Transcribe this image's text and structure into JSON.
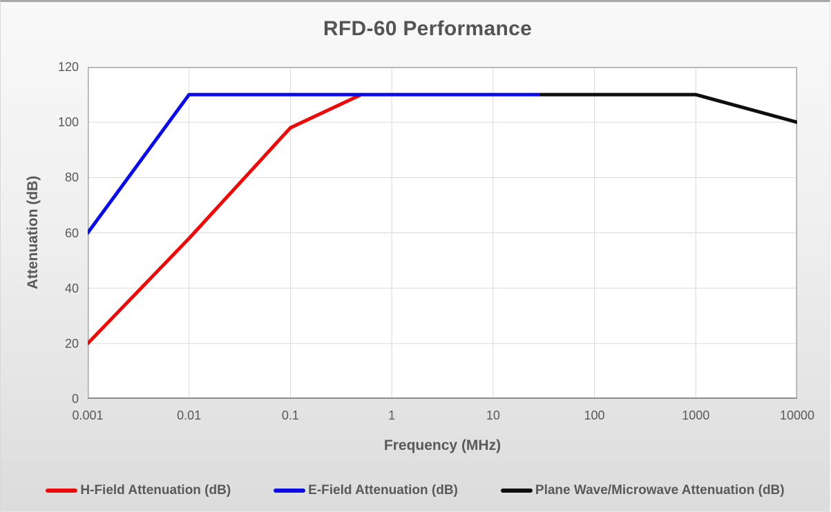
{
  "chart": {
    "title": "RFD-60 Performance"
  },
  "chart_data": {
    "type": "line",
    "title": "RFD-60 Performance",
    "xlabel": "Frequency (MHz)",
    "ylabel": "Attenuation (dB)",
    "x_scale": "log",
    "xlim": [
      0.001,
      10000
    ],
    "ylim": [
      0,
      120
    ],
    "x_ticks": [
      "0.001",
      "0.01",
      "0.1",
      "1",
      "10",
      "100",
      "1000",
      "10000"
    ],
    "y_ticks": [
      0,
      20,
      40,
      60,
      80,
      100,
      120
    ],
    "grid": true,
    "legend_position": "bottom",
    "colors": {
      "grid": "#d9d9d9",
      "plot_border": "#a6a6a6",
      "axis_line": "#8c8c8c",
      "text": "#595959"
    },
    "series": [
      {
        "name": "H-Field Attenuation (dB)",
        "color": "#eb0a0a",
        "points": [
          [
            0.001,
            20
          ],
          [
            0.01,
            58
          ],
          [
            0.1,
            98
          ],
          [
            0.5,
            110
          ]
        ]
      },
      {
        "name": "E-Field Attenuation (dB)",
        "color": "#0b0be6",
        "points": [
          [
            0.001,
            60
          ],
          [
            0.01,
            110
          ],
          [
            30,
            110
          ]
        ]
      },
      {
        "name": "Plane Wave/Microwave Attenuation (dB)",
        "color": "#0f0f0f",
        "points": [
          [
            30,
            110
          ],
          [
            1000,
            110
          ],
          [
            10000,
            100
          ]
        ]
      }
    ]
  }
}
